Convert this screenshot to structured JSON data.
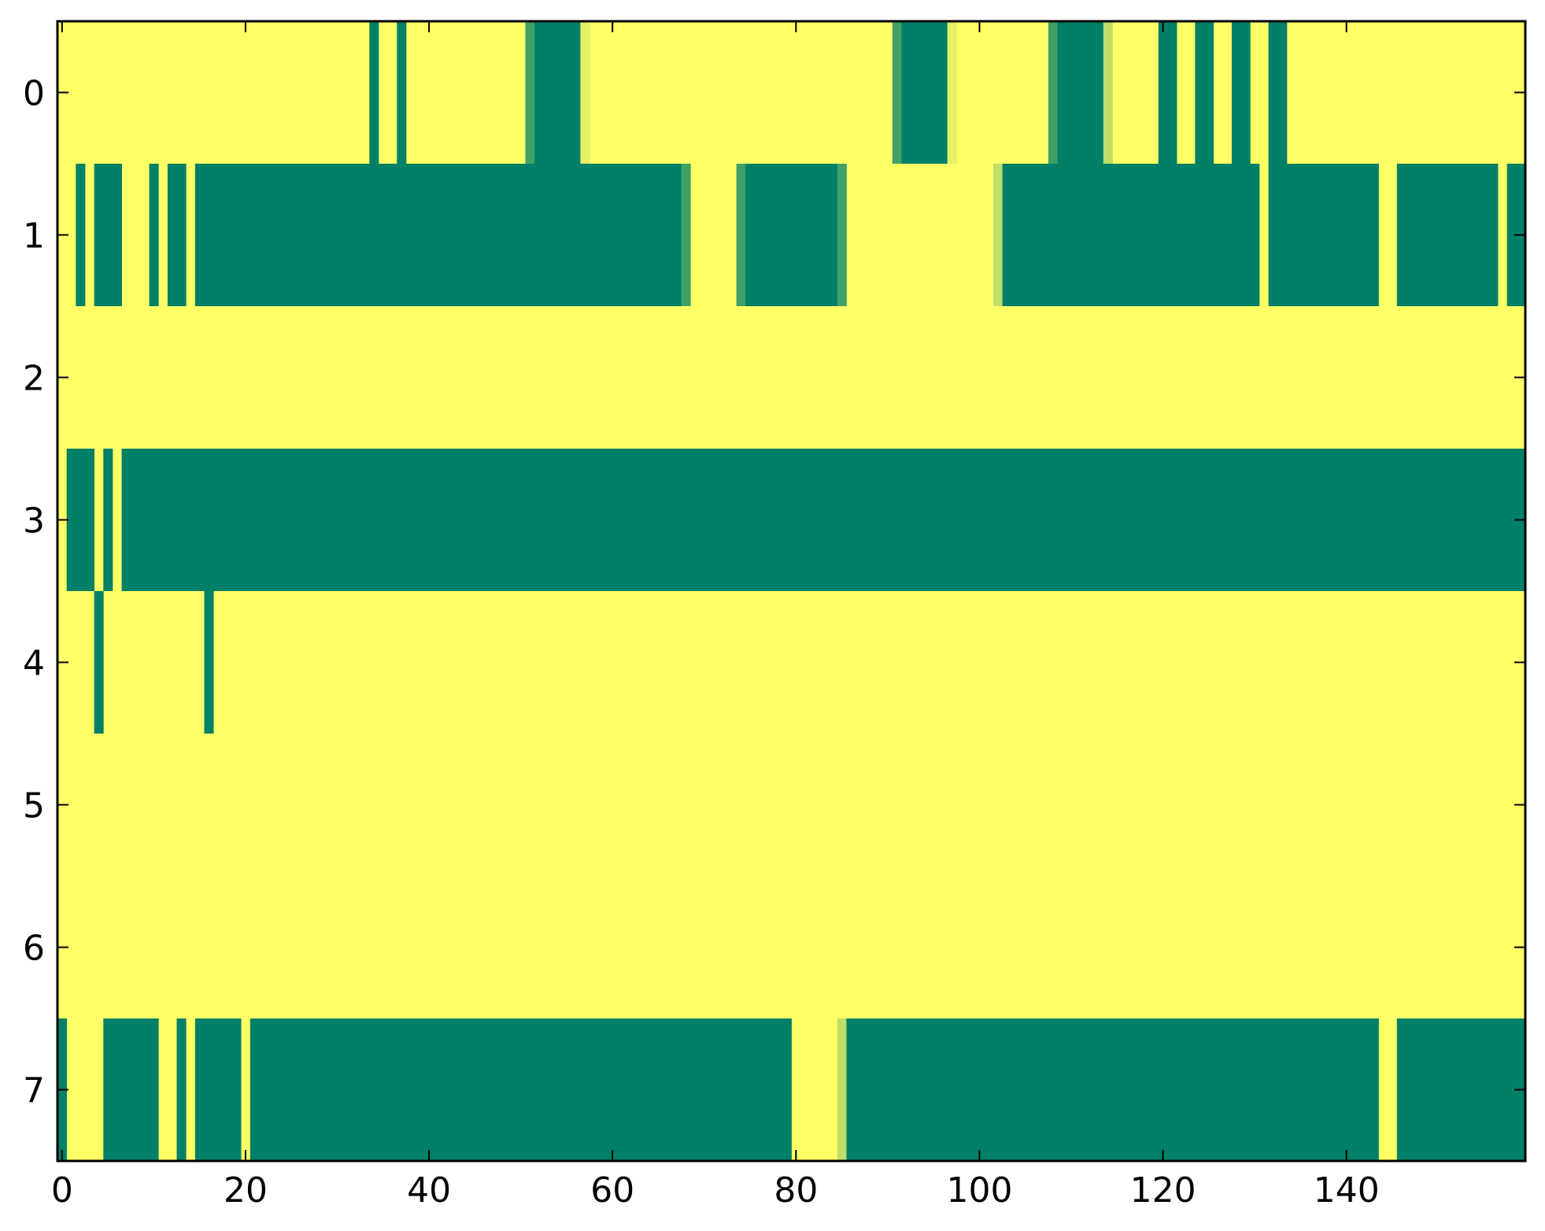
{
  "chart_data": {
    "type": "heatmap",
    "title": "",
    "xlabel": "",
    "ylabel": "",
    "xlim": [
      -0.5,
      159.5
    ],
    "ylim": [
      7.5,
      -0.5
    ],
    "xticks": [
      0,
      20,
      40,
      60,
      80,
      100,
      120,
      140
    ],
    "xtick_labels": [
      "0",
      "20",
      "40",
      "60",
      "80",
      "100",
      "120",
      "140"
    ],
    "yticks": [
      0,
      1,
      2,
      3,
      4,
      5,
      6,
      7
    ],
    "ytick_labels": [
      "0",
      "1",
      "2",
      "3",
      "4",
      "5",
      "6",
      "7"
    ],
    "n_rows": 8,
    "n_cols": 160,
    "colormap": "summer (high = yellow)",
    "colors": {
      "background": "#ffff66",
      "1.0": "#008066",
      "0.75": "#40a066",
      "0.25": "#bfdf66",
      "0.1": "#e6f266"
    },
    "grid": false,
    "legend": "none",
    "rows": [
      {
        "row": 0,
        "segments": [
          {
            "start": 33.5,
            "end": 34.5,
            "level": 1.0
          },
          {
            "start": 36.5,
            "end": 37.5,
            "level": 1.0
          },
          {
            "start": 50.5,
            "end": 51.5,
            "level": 0.75
          },
          {
            "start": 51.5,
            "end": 56.5,
            "level": 1.0
          },
          {
            "start": 56.5,
            "end": 57.5,
            "level": 0.1
          },
          {
            "start": 90.5,
            "end": 91.5,
            "level": 0.75
          },
          {
            "start": 91.5,
            "end": 96.5,
            "level": 1.0
          },
          {
            "start": 96.5,
            "end": 97.5,
            "level": 0.1
          },
          {
            "start": 107.5,
            "end": 108.5,
            "level": 0.75
          },
          {
            "start": 108.5,
            "end": 113.5,
            "level": 1.0
          },
          {
            "start": 113.5,
            "end": 114.5,
            "level": 0.25
          },
          {
            "start": 119.5,
            "end": 121.5,
            "level": 1.0
          },
          {
            "start": 123.5,
            "end": 125.5,
            "level": 1.0
          },
          {
            "start": 127.5,
            "end": 129.5,
            "level": 1.0
          },
          {
            "start": 131.5,
            "end": 133.5,
            "level": 1.0
          }
        ]
      },
      {
        "row": 1,
        "segments": [
          {
            "start": 1.5,
            "end": 2.5,
            "level": 1.0
          },
          {
            "start": 3.5,
            "end": 6.5,
            "level": 1.0
          },
          {
            "start": 9.5,
            "end": 10.5,
            "level": 1.0
          },
          {
            "start": 11.5,
            "end": 13.5,
            "level": 1.0
          },
          {
            "start": 14.5,
            "end": 67.5,
            "level": 1.0
          },
          {
            "start": 67.5,
            "end": 68.5,
            "level": 0.75
          },
          {
            "start": 73.5,
            "end": 74.5,
            "level": 0.75
          },
          {
            "start": 74.5,
            "end": 84.5,
            "level": 1.0
          },
          {
            "start": 84.5,
            "end": 85.5,
            "level": 0.75
          },
          {
            "start": 101.5,
            "end": 102.5,
            "level": 0.25
          },
          {
            "start": 102.5,
            "end": 130.5,
            "level": 1.0
          },
          {
            "start": 131.5,
            "end": 143.5,
            "level": 1.0
          },
          {
            "start": 145.5,
            "end": 156.5,
            "level": 1.0
          },
          {
            "start": 157.5,
            "end": 159.5,
            "level": 1.0
          }
        ]
      },
      {
        "row": 2,
        "segments": []
      },
      {
        "row": 3,
        "segments": [
          {
            "start": 0.5,
            "end": 3.5,
            "level": 1.0
          },
          {
            "start": 4.5,
            "end": 5.5,
            "level": 1.0
          },
          {
            "start": 6.5,
            "end": 159.5,
            "level": 1.0
          }
        ]
      },
      {
        "row": 4,
        "segments": [
          {
            "start": 3.5,
            "end": 4.5,
            "level": 1.0
          },
          {
            "start": 15.5,
            "end": 16.5,
            "level": 1.0
          }
        ]
      },
      {
        "row": 5,
        "segments": []
      },
      {
        "row": 6,
        "segments": []
      },
      {
        "row": 7,
        "segments": [
          {
            "start": -0.5,
            "end": 0.5,
            "level": 1.0
          },
          {
            "start": 4.5,
            "end": 10.5,
            "level": 1.0
          },
          {
            "start": 12.5,
            "end": 13.5,
            "level": 1.0
          },
          {
            "start": 14.5,
            "end": 19.5,
            "level": 1.0
          },
          {
            "start": 20.5,
            "end": 79.5,
            "level": 1.0
          },
          {
            "start": 84.5,
            "end": 85.5,
            "level": 0.25
          },
          {
            "start": 85.5,
            "end": 143.5,
            "level": 1.0
          },
          {
            "start": 145.5,
            "end": 159.5,
            "level": 1.0
          }
        ]
      }
    ]
  }
}
